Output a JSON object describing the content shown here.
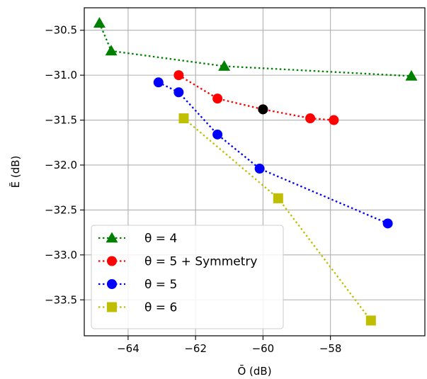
{
  "chart_data": {
    "type": "line",
    "xlabel": "Ō (dB)",
    "ylabel": "Ē (dB)",
    "xlim": [
      -65.3,
      -55.2
    ],
    "ylim": [
      -33.9,
      -30.25
    ],
    "xticks": [
      -64,
      -62,
      -60,
      -58
    ],
    "xtick_labels": [
      "−64",
      "−62",
      "−60",
      "−58"
    ],
    "yticks": [
      -30.5,
      -31.0,
      -31.5,
      -32.0,
      -32.5,
      -33.0,
      -33.5
    ],
    "ytick_labels": [
      "−30.5",
      "−31.0",
      "−31.5",
      "−32.0",
      "−32.5",
      "−33.0",
      "−33.5"
    ],
    "grid": true,
    "legend_position": "lower-left",
    "series": [
      {
        "name": "θ = 4",
        "color": "#008000",
        "marker": "triangle",
        "linestyle": "dotted",
        "x": [
          -64.85,
          -64.5,
          -61.15,
          -55.6
        ],
        "y": [
          -30.42,
          -30.73,
          -30.9,
          -31.01
        ]
      },
      {
        "name": "θ = 5 + Symmetry",
        "color": "#ff0000",
        "marker": "circle",
        "linestyle": "dotted",
        "x": [
          -62.5,
          -61.35,
          -60.0,
          -58.6,
          -57.9
        ],
        "y": [
          -31.0,
          -31.26,
          -31.38,
          -31.48,
          -31.5
        ]
      },
      {
        "name": "θ = 5",
        "color": "#0000ff",
        "marker": "circle",
        "linestyle": "dotted",
        "x": [
          -63.1,
          -62.5,
          -61.35,
          -60.1,
          -56.3
        ],
        "y": [
          -31.08,
          -31.19,
          -31.66,
          -32.04,
          -32.65
        ]
      },
      {
        "name": "θ = 6",
        "color": "#bfbf00",
        "marker": "square",
        "linestyle": "dotted",
        "x": [
          -62.35,
          -59.55,
          -56.8
        ],
        "y": [
          -31.48,
          -32.37,
          -33.73
        ]
      }
    ],
    "highlight_point": {
      "x": -60.0,
      "y": -31.38,
      "color": "#000000"
    }
  }
}
